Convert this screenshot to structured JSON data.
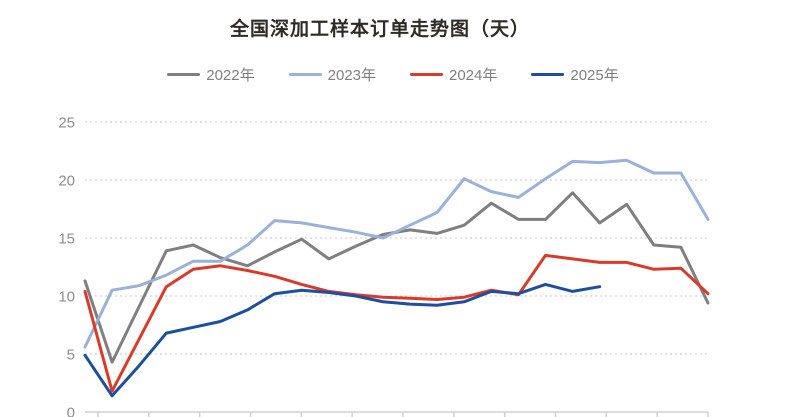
{
  "title": "全国深加工样本订单走势图（天）",
  "y_axis": {
    "tick_labels": [
      "0",
      "5",
      "10",
      "15",
      "20",
      "25"
    ],
    "min": 0,
    "max": 25
  },
  "colors": {
    "background": "#ffffff",
    "title_text": "#2e2a26",
    "legend_text": "#7f7f7f",
    "axis_line": "#d0d0d0",
    "gridline": "#c9c9c9",
    "y_label_text": "#8c8c8c",
    "series_2022": "#7f7f7f",
    "series_2023": "#9ab1d8",
    "series_2024": "#d93b2b",
    "series_2025": "#1f4e9c"
  },
  "chart_data": {
    "type": "line",
    "title": "全国深加工样本订单走势图（天）",
    "xlabel": "",
    "ylabel": "",
    "ylim": [
      0,
      25
    ],
    "y_ticks": [
      0,
      5,
      10,
      15,
      20,
      25
    ],
    "grid": "horizontal-dotted",
    "legend_position": "top-center",
    "x_axis_note": "24 evenly spaced survey points across the year; month tick marks shown, tick labels cropped out of the screenshot",
    "x_tick_count": 13,
    "series": [
      {
        "name": "2022年",
        "color": "#7f7f7f",
        "values": [
          11.3,
          4.3,
          9.1,
          13.9,
          14.4,
          13.3,
          12.6,
          13.8,
          14.9,
          13.2,
          14.3,
          15.3,
          15.7,
          15.4,
          16.1,
          18.0,
          16.6,
          16.6,
          18.9,
          16.3,
          17.9,
          14.4,
          14.2,
          9.4
        ]
      },
      {
        "name": "2023年",
        "color": "#9ab1d8",
        "values": [
          5.6,
          10.5,
          10.9,
          11.8,
          13.0,
          13.0,
          14.4,
          16.5,
          16.3,
          15.9,
          15.5,
          15.0,
          16.1,
          17.2,
          20.1,
          19.0,
          18.5,
          20.1,
          21.6,
          21.5,
          21.7,
          20.6,
          20.6,
          16.6
        ]
      },
      {
        "name": "2024年",
        "color": "#d93b2b",
        "values": [
          10.4,
          1.8,
          6.3,
          10.8,
          12.3,
          12.6,
          12.2,
          11.7,
          11.0,
          10.4,
          10.1,
          9.9,
          9.8,
          9.7,
          9.9,
          10.5,
          10.1,
          13.5,
          13.2,
          12.9,
          12.9,
          12.3,
          12.4,
          10.2
        ]
      },
      {
        "name": "2025年",
        "color": "#1f4e9c",
        "values": [
          4.9,
          1.4,
          4.0,
          6.8,
          7.3,
          7.8,
          8.8,
          10.2,
          10.5,
          10.3,
          10.0,
          9.5,
          9.3,
          9.2,
          9.5,
          10.4,
          10.2,
          11.0,
          10.4,
          10.8
        ]
      }
    ]
  }
}
